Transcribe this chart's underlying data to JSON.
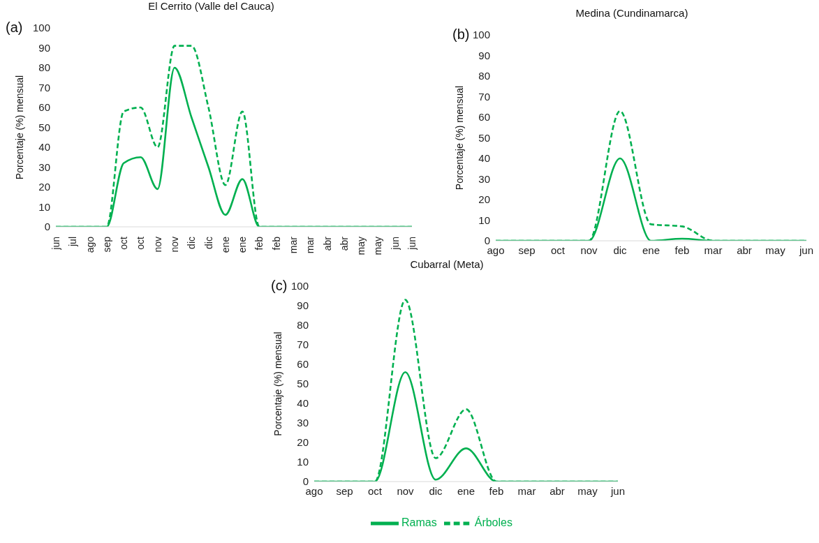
{
  "chart_data": [
    {
      "type": "line",
      "title": "El Cerrito (Valle del Cauca)",
      "ylabel": "Porcentaje (%) mensual",
      "annotations": [
        "(a)"
      ],
      "categories": [
        "jun",
        "jul",
        "ago",
        "sep",
        "oct",
        "oct",
        "nov",
        "nov",
        "dic",
        "dic",
        "ene",
        "ene",
        "feb",
        "feb",
        "mar",
        "mar",
        "abr",
        "abr",
        "may",
        "may",
        "jun",
        "jun"
      ],
      "series": [
        {
          "color": "#00b050",
          "line_style": "dashed",
          "values": [
            0,
            0,
            0,
            0,
            58,
            60,
            40,
            91,
            91,
            60,
            21,
            58,
            0,
            0,
            0,
            0,
            0,
            0,
            0,
            0,
            0,
            0
          ]
        },
        {
          "color": "#00b050",
          "line_style": "solid",
          "values": [
            0,
            0,
            0,
            0,
            32,
            35,
            19,
            80,
            55,
            30,
            6,
            24,
            0,
            0,
            0,
            0,
            0,
            0,
            0,
            0,
            0,
            0
          ]
        }
      ],
      "ylim": [
        0,
        100
      ],
      "yticks": [
        0,
        10,
        20,
        30,
        40,
        50,
        60,
        70,
        80,
        90,
        100
      ],
      "legend": false
    },
    {
      "type": "line",
      "title": "Medina (Cundinamarca)",
      "ylabel": "Porcentaje (%) mensual",
      "annotations": [
        "(b)"
      ],
      "categories": [
        "ago",
        "sep",
        "oct",
        "nov",
        "dic",
        "ene",
        "feb",
        "mar",
        "abr",
        "may",
        "jun"
      ],
      "series": [
        {
          "color": "#00b050",
          "line_style": "dashed",
          "values": [
            0,
            0,
            0,
            0,
            63,
            8,
            7,
            0,
            0,
            0,
            0
          ]
        },
        {
          "color": "#00b050",
          "line_style": "solid",
          "values": [
            0,
            0,
            0,
            0,
            40,
            0,
            1,
            0,
            0,
            0,
            0
          ]
        }
      ],
      "ylim": [
        0,
        100
      ],
      "yticks": [
        0,
        10,
        20,
        30,
        40,
        50,
        60,
        70,
        80,
        90,
        100
      ],
      "legend": false
    },
    {
      "type": "line",
      "title": "Cubarral (Meta)",
      "ylabel": "Porcentaje (%) mensual",
      "annotations": [
        "(c)"
      ],
      "categories": [
        "ago",
        "sep",
        "oct",
        "nov",
        "dic",
        "ene",
        "feb",
        "mar",
        "abr",
        "may",
        "jun"
      ],
      "series": [
        {
          "name": "Árboles",
          "color": "#00b050",
          "line_style": "dashed",
          "values": [
            0,
            0,
            0,
            93,
            12,
            37,
            0,
            0,
            0,
            0,
            0
          ]
        },
        {
          "name": "Ramas",
          "color": "#00b050",
          "line_style": "solid",
          "values": [
            0,
            0,
            0,
            56,
            1,
            17,
            0,
            0,
            0,
            0,
            0
          ]
        }
      ],
      "ylim": [
        0,
        100
      ],
      "yticks": [
        0,
        10,
        20,
        30,
        40,
        50,
        60,
        70,
        80,
        90,
        100
      ],
      "legend": "bottom"
    }
  ]
}
